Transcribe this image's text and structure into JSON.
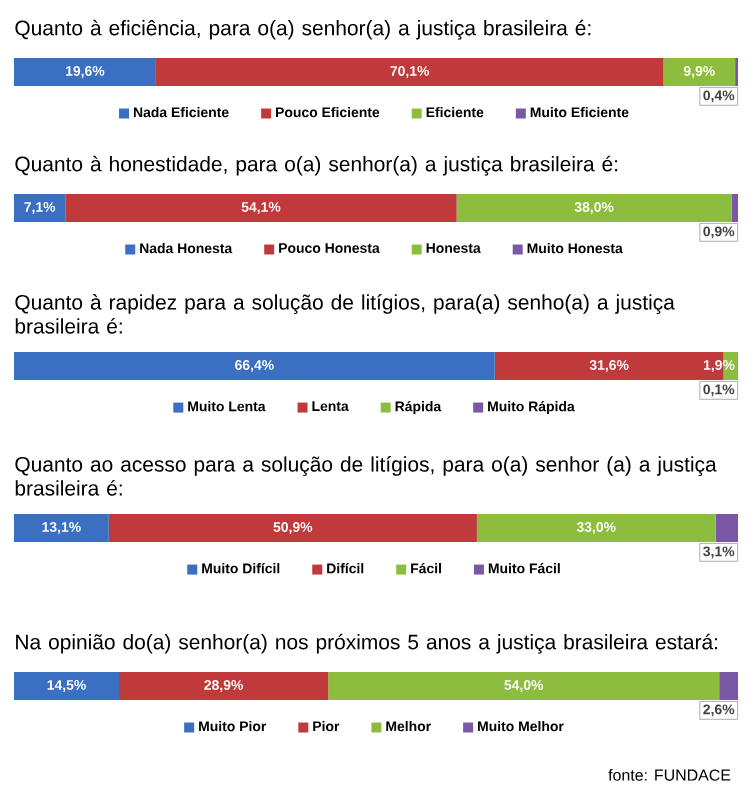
{
  "chart_data": [
    {
      "type": "bar",
      "orientation": "horizontal",
      "stacked": true,
      "legend": "bottom",
      "title": "Quanto à eficiência, para o(a) senhor(a) a justiça brasileira é:",
      "categories": [
        null
      ],
      "series": [
        {
          "name": "Nada Eficiente",
          "color": "#3b6fc2",
          "values": [
            19.6
          ],
          "value_labels": [
            "19,6%"
          ]
        },
        {
          "name": "Pouco Eficiente",
          "color": "#c0393b",
          "values": [
            70.1
          ],
          "value_labels": [
            "70,1%"
          ]
        },
        {
          "name": "Eficiente",
          "color": "#8dbd3f",
          "values": [
            9.9
          ],
          "value_labels": [
            "9,9%"
          ]
        },
        {
          "name": "Muito Eficiente",
          "color": "#7b58a6",
          "values": [
            0.4
          ],
          "value_labels": [
            "0,4%"
          ]
        }
      ]
    },
    {
      "type": "bar",
      "orientation": "horizontal",
      "stacked": true,
      "legend": "bottom",
      "title": "Quanto à honestidade, para o(a) senhor(a) a justiça brasileira é:",
      "categories": [
        null
      ],
      "series": [
        {
          "name": "Nada Honesta",
          "color": "#3b6fc2",
          "values": [
            7.1
          ],
          "value_labels": [
            "7,1%"
          ]
        },
        {
          "name": "Pouco Honesta",
          "color": "#c0393b",
          "values": [
            54.1
          ],
          "value_labels": [
            "54,1%"
          ]
        },
        {
          "name": "Honesta",
          "color": "#8dbd3f",
          "values": [
            38.0
          ],
          "value_labels": [
            "38,0%"
          ]
        },
        {
          "name": "Muito Honesta",
          "color": "#7b58a6",
          "values": [
            0.9
          ],
          "value_labels": [
            "0,9%"
          ]
        }
      ]
    },
    {
      "type": "bar",
      "orientation": "horizontal",
      "stacked": true,
      "legend": "bottom",
      "title": "Quanto à rapidez para a solução de litígios, para(a) senho(a) a justiça brasileira é:",
      "categories": [
        null
      ],
      "series": [
        {
          "name": "Muito Lenta",
          "color": "#3b6fc2",
          "values": [
            66.4
          ],
          "value_labels": [
            "66,4%"
          ]
        },
        {
          "name": "Lenta",
          "color": "#c0393b",
          "values": [
            31.6
          ],
          "value_labels": [
            "31,6%"
          ]
        },
        {
          "name": "Rápida",
          "color": "#8dbd3f",
          "values": [
            1.9
          ],
          "value_labels": [
            "1,9%"
          ]
        },
        {
          "name": "Muito Rápida",
          "color": "#7b58a6",
          "values": [
            0.1
          ],
          "value_labels": [
            "0,1%"
          ]
        }
      ]
    },
    {
      "type": "bar",
      "orientation": "horizontal",
      "stacked": true,
      "legend": "bottom",
      "title": "Quanto ao acesso para a solução de litígios, para o(a) senhor (a) a justiça brasileira é:",
      "categories": [
        null
      ],
      "series": [
        {
          "name": "Muito Difícil",
          "color": "#3b6fc2",
          "values": [
            13.1
          ],
          "value_labels": [
            "13,1%"
          ]
        },
        {
          "name": "Difícil",
          "color": "#c0393b",
          "values": [
            50.9
          ],
          "value_labels": [
            "50,9%"
          ]
        },
        {
          "name": "Fácil",
          "color": "#8dbd3f",
          "values": [
            33.0
          ],
          "value_labels": [
            "33,0%"
          ]
        },
        {
          "name": "Muito Fácil",
          "color": "#7b58a6",
          "values": [
            3.1
          ],
          "value_labels": [
            "3,1%"
          ]
        }
      ]
    },
    {
      "type": "bar",
      "orientation": "horizontal",
      "stacked": true,
      "legend": "bottom",
      "title": "Na opinião do(a) senhor(a) nos próximos 5 anos a justiça brasileira estará:",
      "categories": [
        null
      ],
      "annotations": [
        "fonte: FUNDACE"
      ],
      "series": [
        {
          "name": "Muito Pior",
          "color": "#3b6fc2",
          "values": [
            14.5
          ],
          "value_labels": [
            "14,5%"
          ]
        },
        {
          "name": "Pior",
          "color": "#c0393b",
          "values": [
            28.9
          ],
          "value_labels": [
            "28,9%"
          ]
        },
        {
          "name": "Melhor",
          "color": "#8dbd3f",
          "values": [
            54.0
          ],
          "value_labels": [
            "54,0%"
          ]
        },
        {
          "name": "Muito Melhor",
          "color": "#7b58a6",
          "values": [
            2.6
          ],
          "value_labels": [
            "2,6%"
          ]
        }
      ]
    }
  ]
}
